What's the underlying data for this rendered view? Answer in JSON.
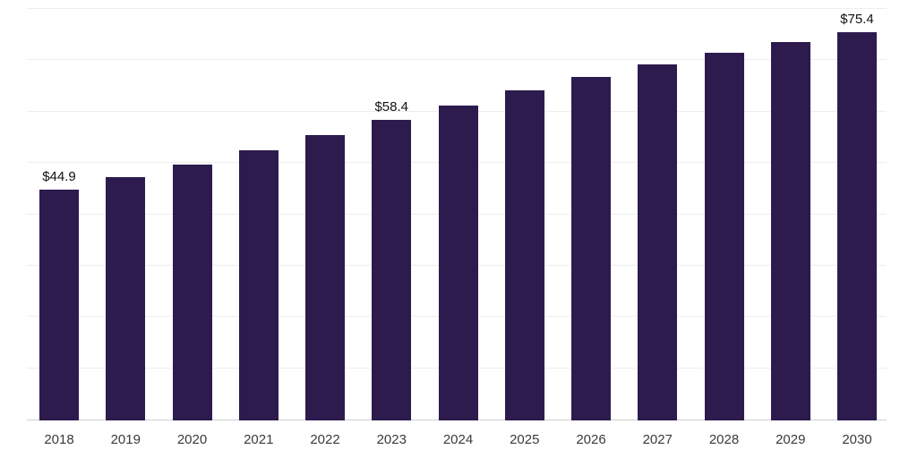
{
  "chart": {
    "background": "#ffffff",
    "bar_color": "#2d1b4e",
    "gridline_color": "#ededed",
    "axis_line_color": "#cfcfcf",
    "value_label_color": "#111111",
    "tick_label_color": "#3a3a3a"
  },
  "chart_data": {
    "type": "bar",
    "title": "",
    "xlabel": "",
    "ylabel": "",
    "categories": [
      "2018",
      "2019",
      "2020",
      "2021",
      "2022",
      "2023",
      "2024",
      "2025",
      "2026",
      "2027",
      "2028",
      "2029",
      "2030"
    ],
    "values": [
      44.9,
      47.3,
      49.8,
      52.6,
      55.4,
      58.4,
      61.2,
      64.2,
      66.7,
      69.2,
      71.4,
      73.5,
      75.4
    ],
    "annotations": [
      {
        "category": "2018",
        "text": "$44.9"
      },
      {
        "category": "2023",
        "text": "$58.4"
      },
      {
        "category": "2030",
        "text": "$75.4"
      }
    ],
    "ylim": [
      0,
      80
    ],
    "grid_step": 10,
    "grid": "horizontal",
    "legend": "none"
  }
}
